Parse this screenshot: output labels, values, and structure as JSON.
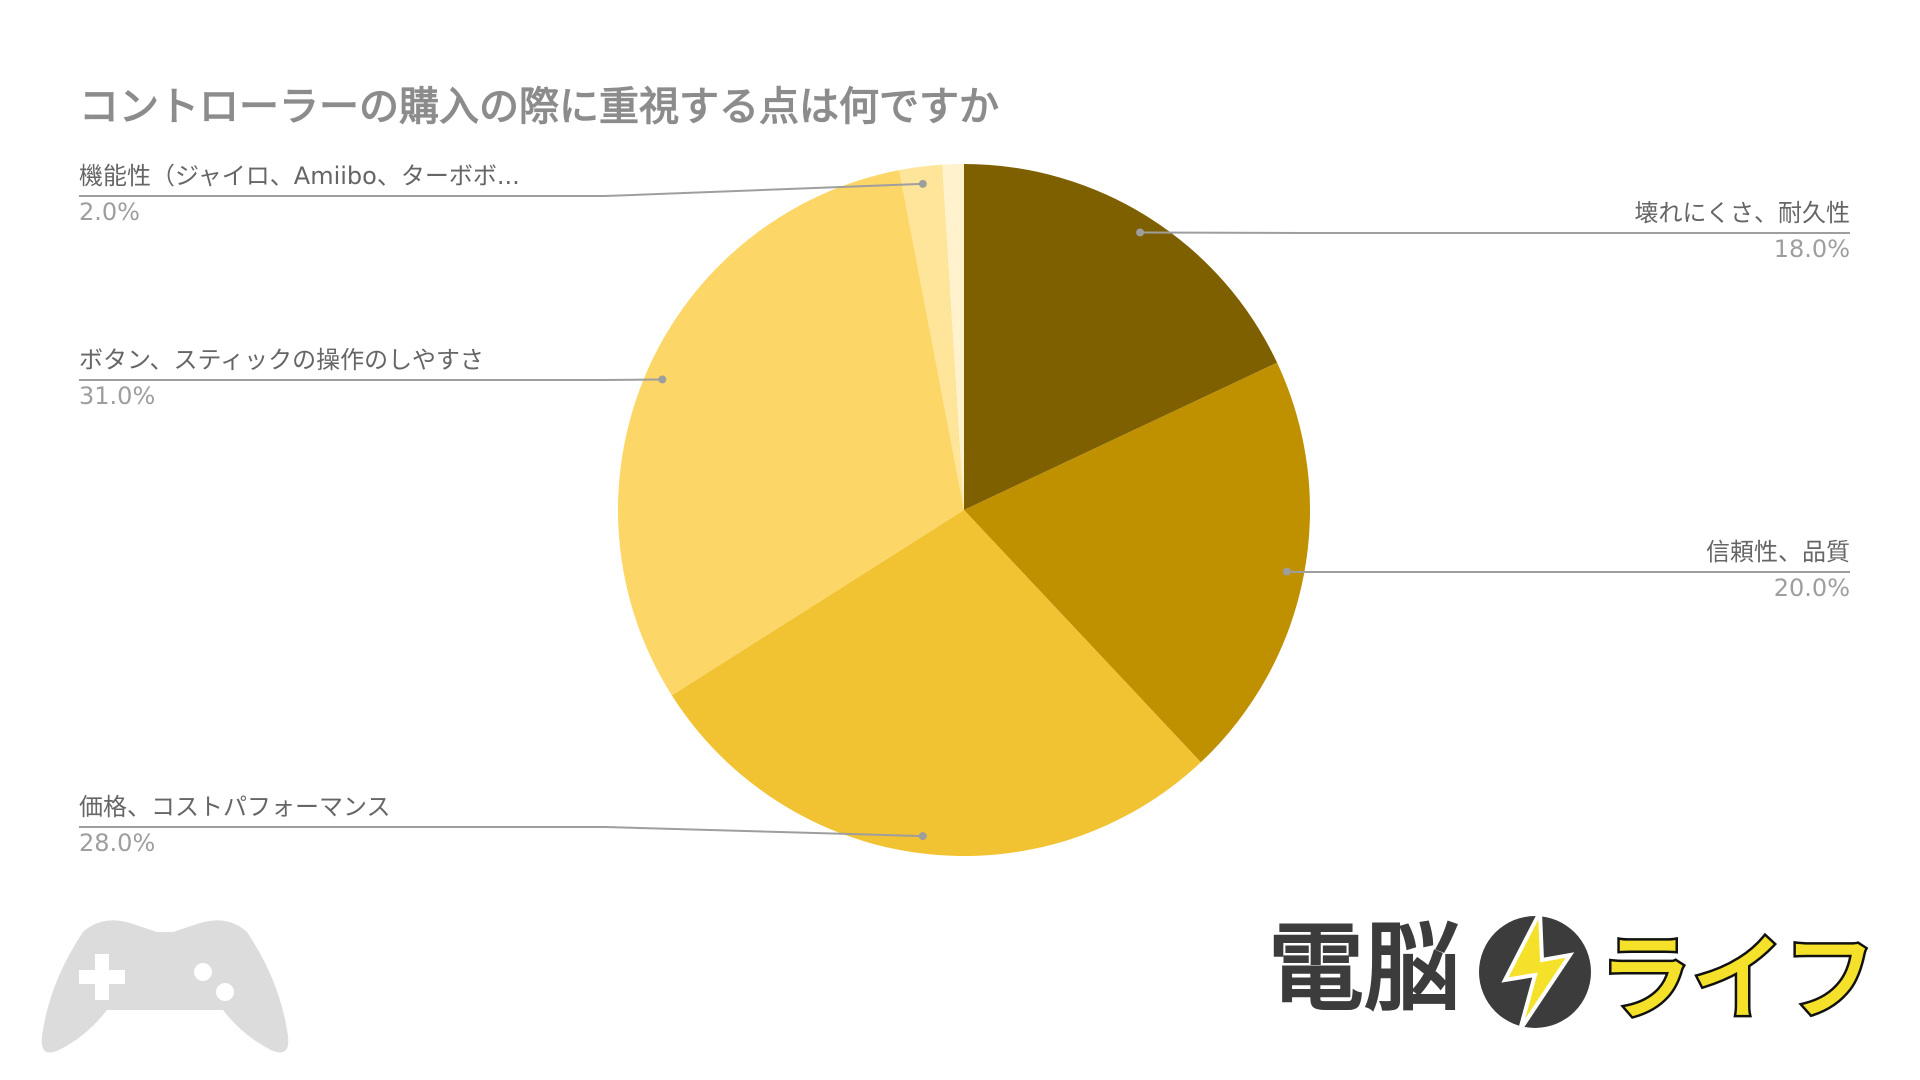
{
  "chart_data": {
    "type": "pie",
    "title": "コントローラーの購入の際に重視する点は何ですか",
    "categories": [
      "壊れにくさ、耐久性",
      "信頼性、品質",
      "価格、コストパフォーマンス",
      "ボタン、スティックの操作のしやすさ",
      "機能性（ジャイロ、Amiibo、ターボボ...",
      null
    ],
    "values": [
      18,
      20,
      28,
      31,
      2,
      1
    ],
    "value_labels": [
      "18.0%",
      "20.0%",
      "28.0%",
      "31.0%",
      "2.0%",
      null
    ],
    "colors": [
      "#7f6000",
      "#bf9000",
      "#f1c232",
      "#fcd666",
      "#ffe599",
      "#fff2cc"
    ]
  },
  "logo": {
    "left": "電脳",
    "right": "ライフ"
  }
}
